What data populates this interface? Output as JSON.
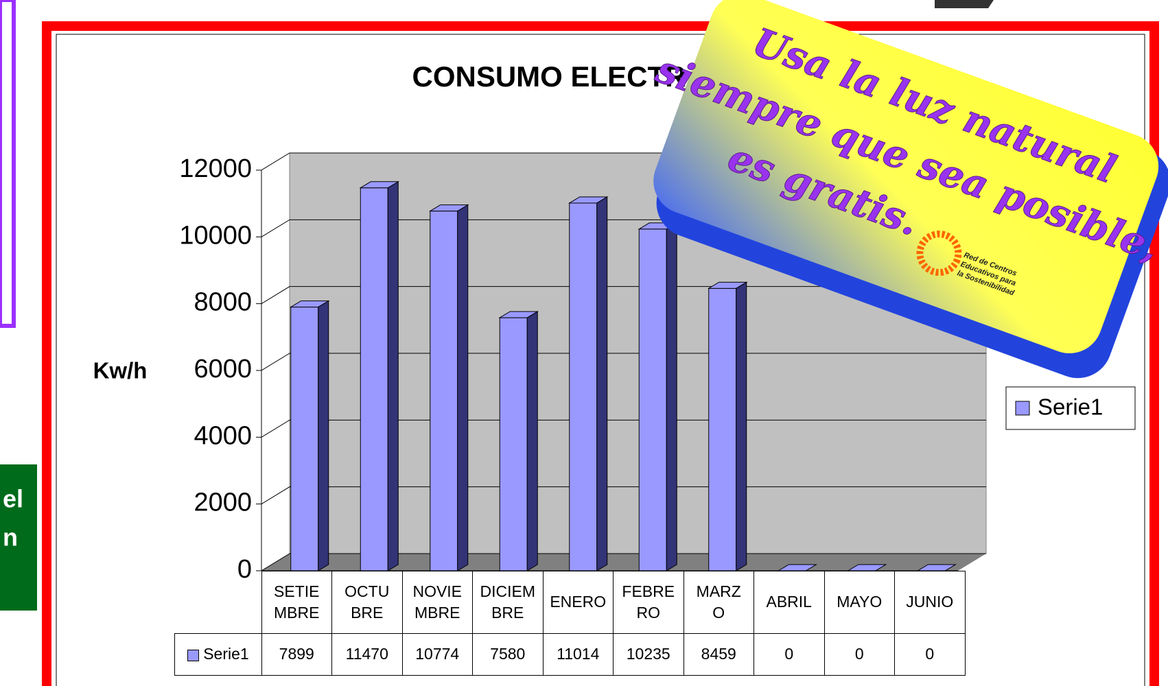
{
  "chart_data": {
    "type": "bar",
    "title": "CONSUMO ELECTR",
    "y_label": "Kw/h",
    "categories": [
      "SETIE\nMBRE",
      "OCTU\nBRE",
      "NOVIE\nMBRE",
      "DICIEM\nBRE",
      "ENERO",
      "FEBRE\nRO",
      "MARZ\nO",
      "ABRIL",
      "MAYO",
      "JUNIO"
    ],
    "series": [
      {
        "name": "Serie1",
        "color": "#9999ff",
        "values": [
          7899,
          11470,
          10774,
          7580,
          11014,
          10235,
          8459,
          0,
          0,
          0
        ]
      }
    ],
    "ylim": [
      0,
      12000
    ],
    "yticks": [
      0,
      2000,
      4000,
      6000,
      8000,
      10000,
      12000
    ],
    "grid": true
  },
  "sticker": {
    "lines": [
      "Usa la luz natural",
      "siempre que sea posible,",
      "es gratis."
    ],
    "logo": [
      "Red de Centros",
      "Educativos para",
      "la Sostenibilidad"
    ]
  },
  "side_text": [
    "el",
    "n"
  ]
}
